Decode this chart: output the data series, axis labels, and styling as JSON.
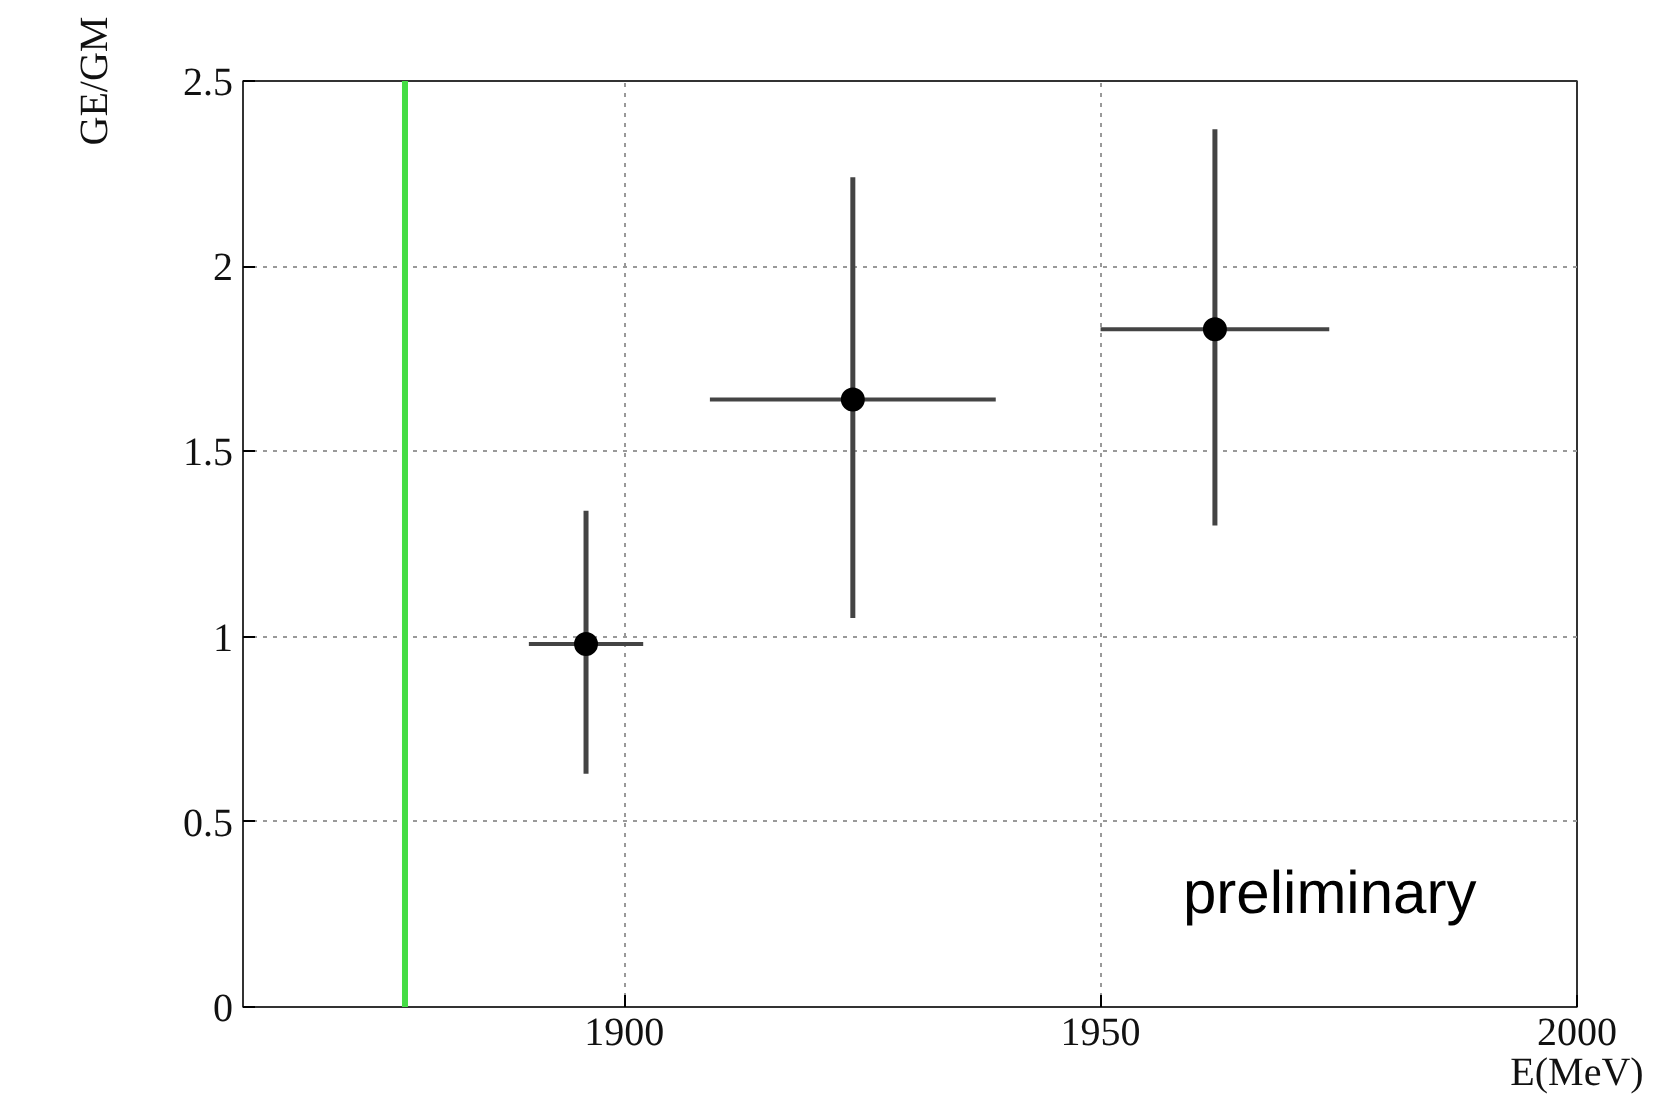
{
  "chart_data": {
    "type": "scatter",
    "xlabel": "E(MeV)",
    "ylabel": "GE/GM",
    "x": [
      1896,
      1924,
      1962
    ],
    "series": [
      {
        "color": "#000000",
        "values": [
          0.98,
          1.64,
          1.83
        ],
        "errors": [
          [
            0.63,
            1.34
          ],
          [
            1.05,
            2.24
          ],
          [
            1.3,
            2.37
          ]
        ],
        "xerrors": [
          [
            1890,
            1902
          ],
          [
            1909,
            1939
          ],
          [
            1950,
            1974
          ]
        ]
      }
    ],
    "xlim": [
      1860,
      2000
    ],
    "xticks": [
      1900,
      1950,
      2000
    ],
    "ylim": [
      0,
      2.5
    ],
    "yticks": [
      0,
      0.5,
      1,
      1.5,
      2,
      2.5
    ],
    "ref_lines": [
      {
        "axis": "x",
        "value": 1877,
        "color": "#44dd44"
      }
    ],
    "annotations": [
      "preliminary"
    ],
    "grid": true,
    "marker": "circle"
  }
}
